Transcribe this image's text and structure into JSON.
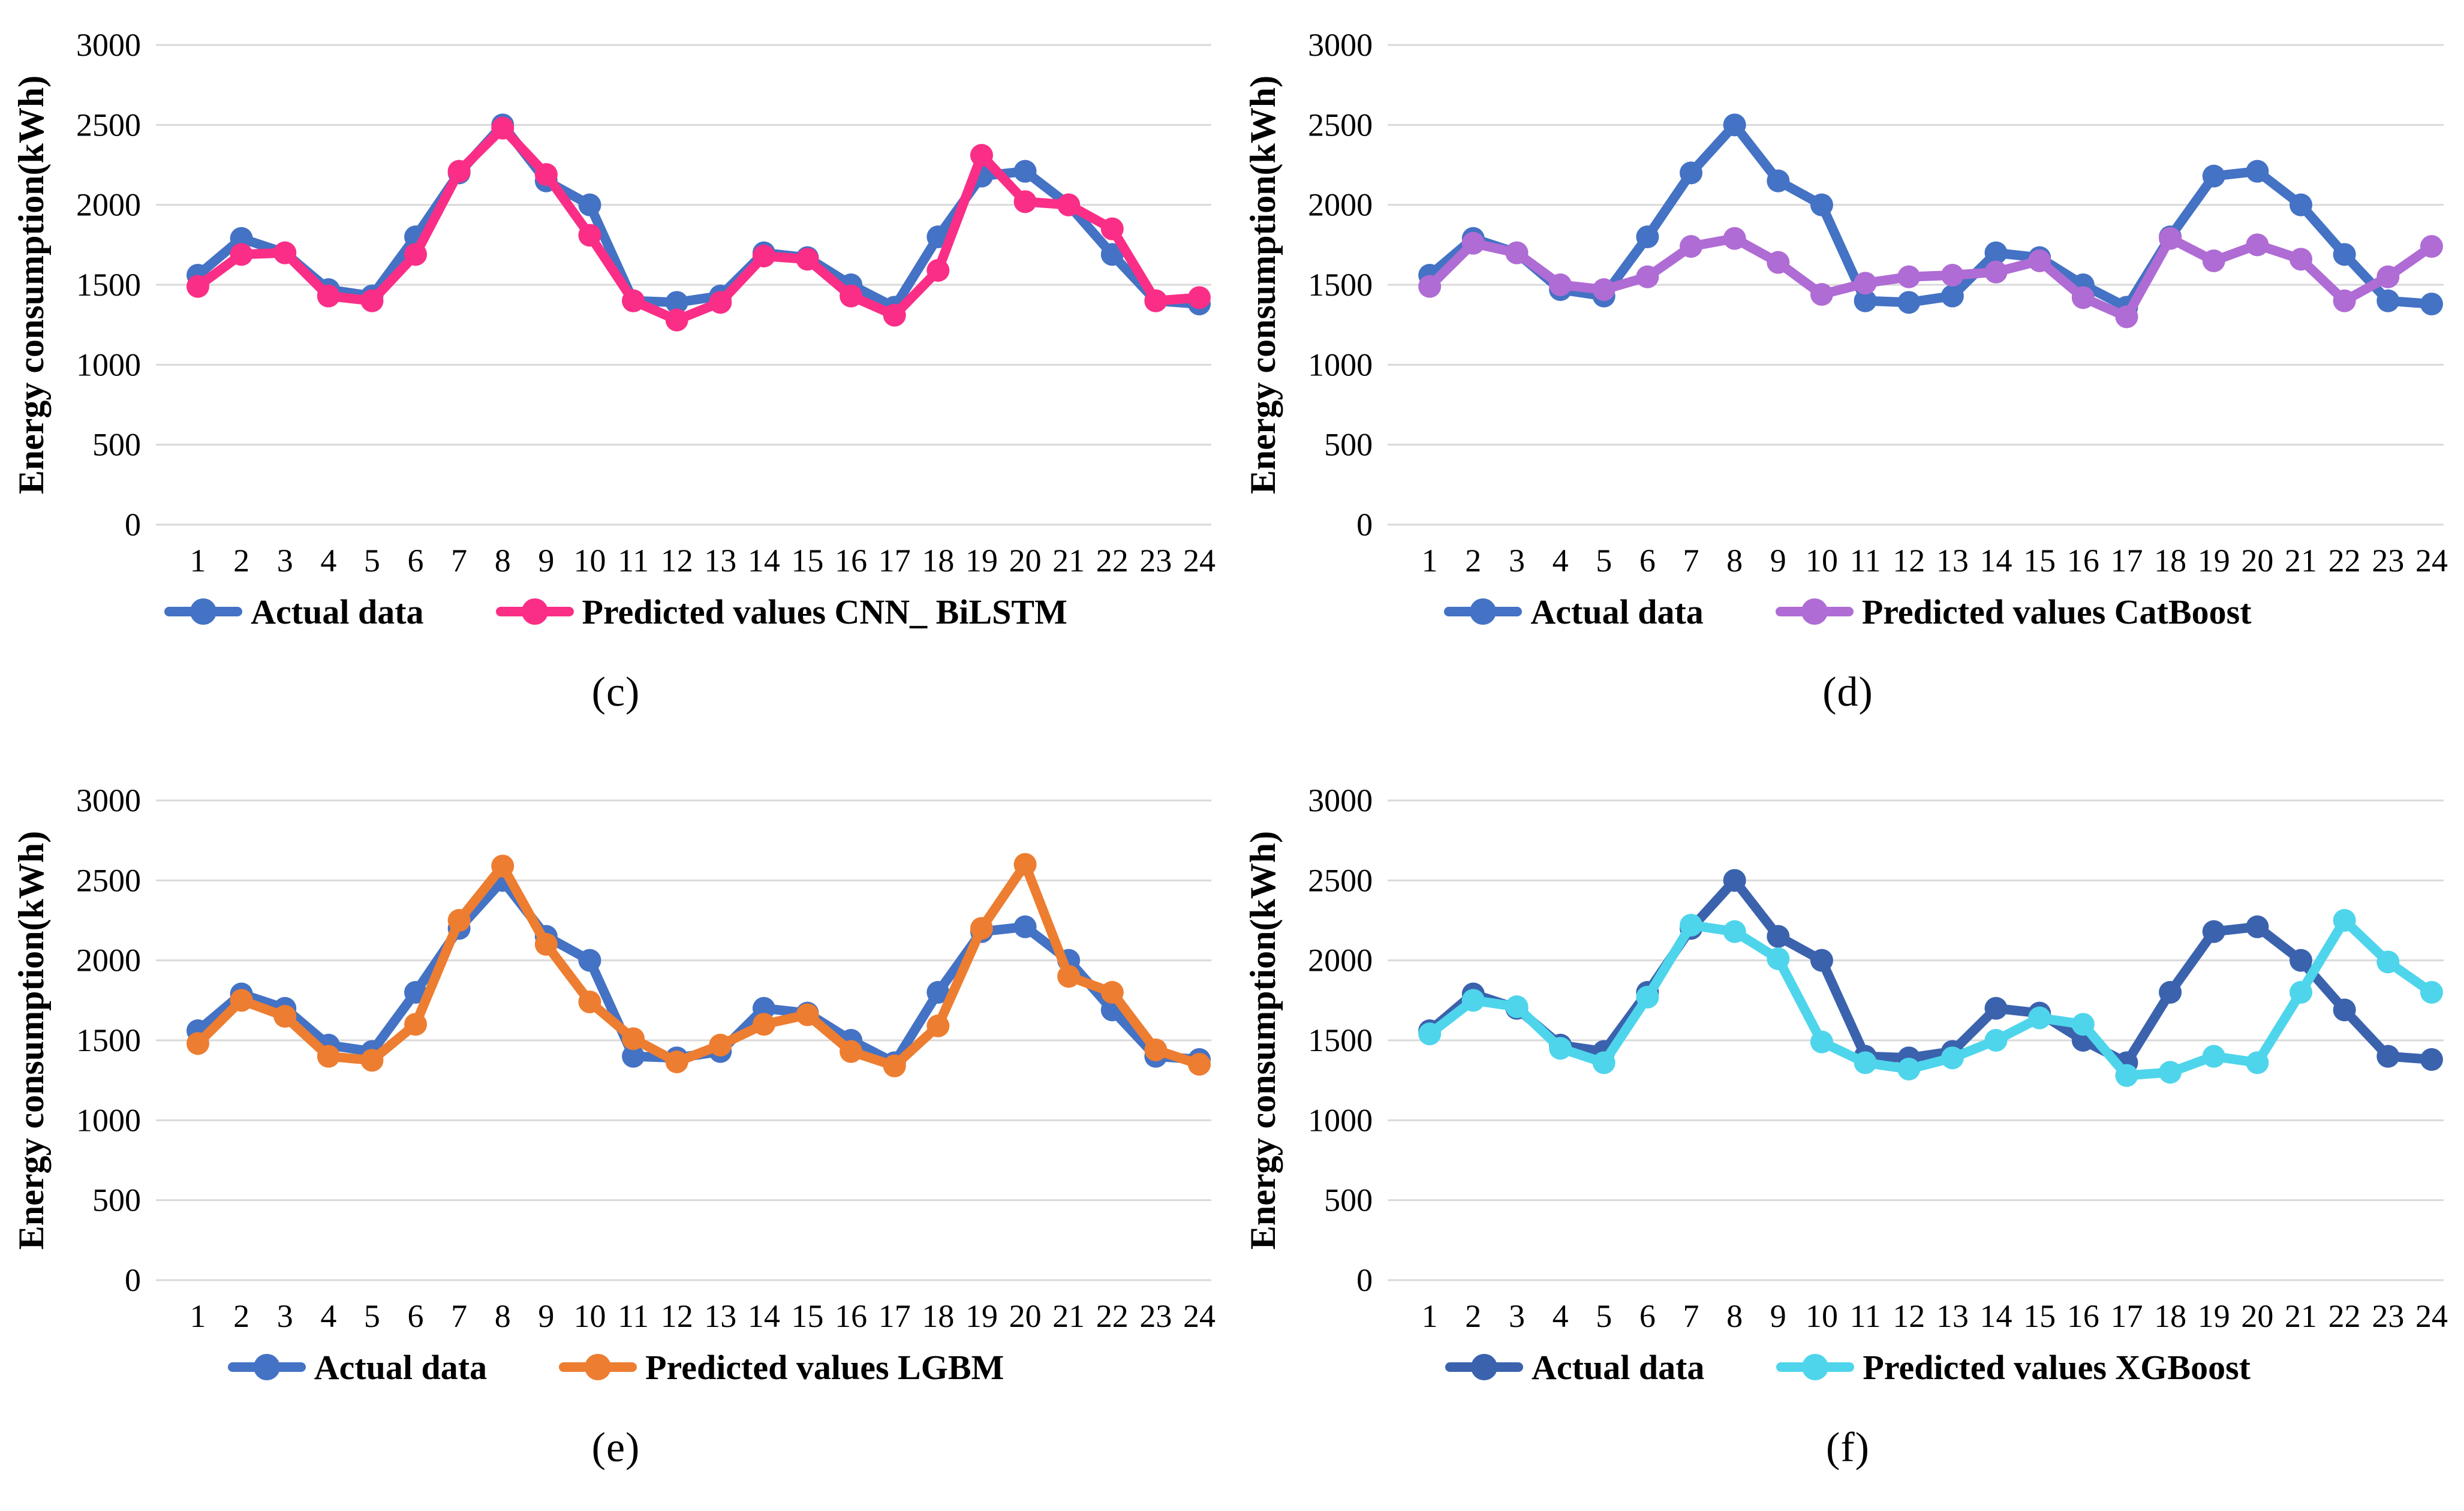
{
  "page": {
    "background": "#ffffff",
    "grid_color": "#d9d9d9",
    "text_color": "#000000"
  },
  "shared_axis": {
    "ylabel": "Energy consumption(kWh)",
    "y_ticks": [
      0,
      500,
      1000,
      1500,
      2000,
      2500,
      3000
    ],
    "ylim": [
      0,
      3000
    ],
    "x_ticks": [
      1,
      2,
      3,
      4,
      5,
      6,
      7,
      8,
      9,
      10,
      11,
      12,
      13,
      14,
      15,
      16,
      17,
      18,
      19,
      20,
      21,
      22,
      23,
      24
    ]
  },
  "chart_data": [
    {
      "type": "line",
      "caption": "(c)",
      "ylabel": "Energy consumption(kWh)",
      "x": [
        1,
        2,
        3,
        4,
        5,
        6,
        7,
        8,
        9,
        10,
        11,
        12,
        13,
        14,
        15,
        16,
        17,
        18,
        19,
        20,
        21,
        22,
        23,
        24
      ],
      "ylim": [
        0,
        3000
      ],
      "y_ticks": [
        0,
        500,
        1000,
        1500,
        2000,
        2500,
        3000
      ],
      "grid": true,
      "legend_position": "bottom",
      "series": [
        {
          "name": "Actual data",
          "color": "#4472C4",
          "values": [
            1560,
            1790,
            1700,
            1470,
            1430,
            1800,
            2200,
            2500,
            2150,
            2000,
            1400,
            1390,
            1430,
            1700,
            1670,
            1500,
            1360,
            1800,
            2180,
            2210,
            2000,
            1690,
            1400,
            1380
          ]
        },
        {
          "name": "Predicted values CNN_ BiLSTM",
          "color": "#FA2E86",
          "values": [
            1490,
            1690,
            1700,
            1430,
            1400,
            1690,
            2210,
            2480,
            2190,
            1810,
            1400,
            1280,
            1390,
            1680,
            1660,
            1430,
            1310,
            1590,
            2310,
            2020,
            2000,
            1850,
            1400,
            1420
          ]
        }
      ]
    },
    {
      "type": "line",
      "caption": "(d)",
      "ylabel": "Energy consumption(kWh)",
      "x": [
        1,
        2,
        3,
        4,
        5,
        6,
        7,
        8,
        9,
        10,
        11,
        12,
        13,
        14,
        15,
        16,
        17,
        18,
        19,
        20,
        21,
        22,
        23,
        24
      ],
      "ylim": [
        0,
        3000
      ],
      "y_ticks": [
        0,
        500,
        1000,
        1500,
        2000,
        2500,
        3000
      ],
      "grid": true,
      "legend_position": "bottom",
      "series": [
        {
          "name": "Actual data",
          "color": "#4472C4",
          "values": [
            1560,
            1790,
            1700,
            1470,
            1430,
            1800,
            2200,
            2500,
            2150,
            2000,
            1400,
            1390,
            1430,
            1700,
            1670,
            1500,
            1360,
            1800,
            2180,
            2210,
            2000,
            1690,
            1400,
            1380
          ]
        },
        {
          "name": "Predicted values CatBoost",
          "color": "#AF6CD4",
          "values": [
            1490,
            1760,
            1700,
            1500,
            1470,
            1550,
            1740,
            1790,
            1640,
            1440,
            1510,
            1550,
            1560,
            1580,
            1650,
            1420,
            1300,
            1790,
            1650,
            1750,
            1660,
            1400,
            1550,
            1740
          ]
        }
      ]
    },
    {
      "type": "line",
      "caption": "(e)",
      "ylabel": "Energy consumption(kWh)",
      "x": [
        1,
        2,
        3,
        4,
        5,
        6,
        7,
        8,
        9,
        10,
        11,
        12,
        13,
        14,
        15,
        16,
        17,
        18,
        19,
        20,
        21,
        22,
        23,
        24
      ],
      "ylim": [
        0,
        3000
      ],
      "y_ticks": [
        0,
        500,
        1000,
        1500,
        2000,
        2500,
        3000
      ],
      "grid": true,
      "legend_position": "bottom",
      "series": [
        {
          "name": "Actual data",
          "color": "#4472C4",
          "values": [
            1560,
            1790,
            1700,
            1470,
            1430,
            1800,
            2200,
            2500,
            2150,
            2000,
            1400,
            1390,
            1430,
            1700,
            1670,
            1500,
            1360,
            1800,
            2180,
            2210,
            2000,
            1690,
            1400,
            1380
          ]
        },
        {
          "name": "Predicted values LGBM",
          "color": "#ED7D31",
          "values": [
            1480,
            1750,
            1650,
            1400,
            1375,
            1600,
            2250,
            2590,
            2100,
            1740,
            1510,
            1365,
            1470,
            1600,
            1660,
            1430,
            1340,
            1590,
            2200,
            2600,
            1900,
            1800,
            1440,
            1350
          ]
        }
      ]
    },
    {
      "type": "line",
      "caption": "(f)",
      "ylabel": "Energy consumption(kWh)",
      "x": [
        1,
        2,
        3,
        4,
        5,
        6,
        7,
        8,
        9,
        10,
        11,
        12,
        13,
        14,
        15,
        16,
        17,
        18,
        19,
        20,
        21,
        22,
        23,
        24
      ],
      "ylim": [
        0,
        3000
      ],
      "y_ticks": [
        0,
        500,
        1000,
        1500,
        2000,
        2500,
        3000
      ],
      "grid": true,
      "legend_position": "bottom",
      "series": [
        {
          "name": "Actual data",
          "color": "#3B62AD",
          "values": [
            1560,
            1790,
            1700,
            1470,
            1430,
            1800,
            2200,
            2500,
            2150,
            2000,
            1400,
            1390,
            1430,
            1700,
            1670,
            1500,
            1360,
            1800,
            2180,
            2210,
            2000,
            1690,
            1400,
            1380
          ]
        },
        {
          "name": "Predicted values XGBoost",
          "color": "#4ED5EC",
          "values": [
            1540,
            1750,
            1710,
            1450,
            1360,
            1770,
            2220,
            2180,
            2010,
            1490,
            1360,
            1320,
            1390,
            1500,
            1640,
            1600,
            1280,
            1300,
            1400,
            1360,
            1800,
            2250,
            1990,
            1800
          ]
        }
      ]
    }
  ]
}
